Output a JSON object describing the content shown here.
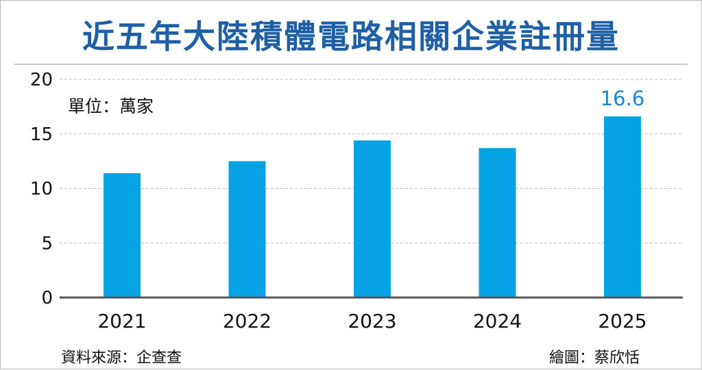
{
  "title": "近五年大陸積體電路相關企業註冊量",
  "unit_label": "單位：萬家",
  "source_label": "資料來源：企查查",
  "credit_label": "繪圖：蔡欣恬",
  "colors": {
    "title": "#1f5fa6",
    "bar": "#06a2e6",
    "data_label": "#1b86d4",
    "grid": "#bdbdbd",
    "axis": "#555555"
  },
  "chart_data": {
    "type": "bar",
    "title": "近五年大陸積體電路相關企業註冊量",
    "categories": [
      "2021",
      "2022",
      "2023",
      "2024",
      "2025"
    ],
    "values": [
      11.4,
      12.5,
      14.4,
      13.7,
      16.6
    ],
    "ylim": [
      0,
      20
    ],
    "yticks": [
      "0",
      "5",
      "10",
      "15",
      "20"
    ],
    "ylabel": "單位：萬家",
    "xlabel": "",
    "grid": true,
    "data_labels": [
      {
        "category": "2025",
        "text": "16.6"
      }
    ]
  }
}
